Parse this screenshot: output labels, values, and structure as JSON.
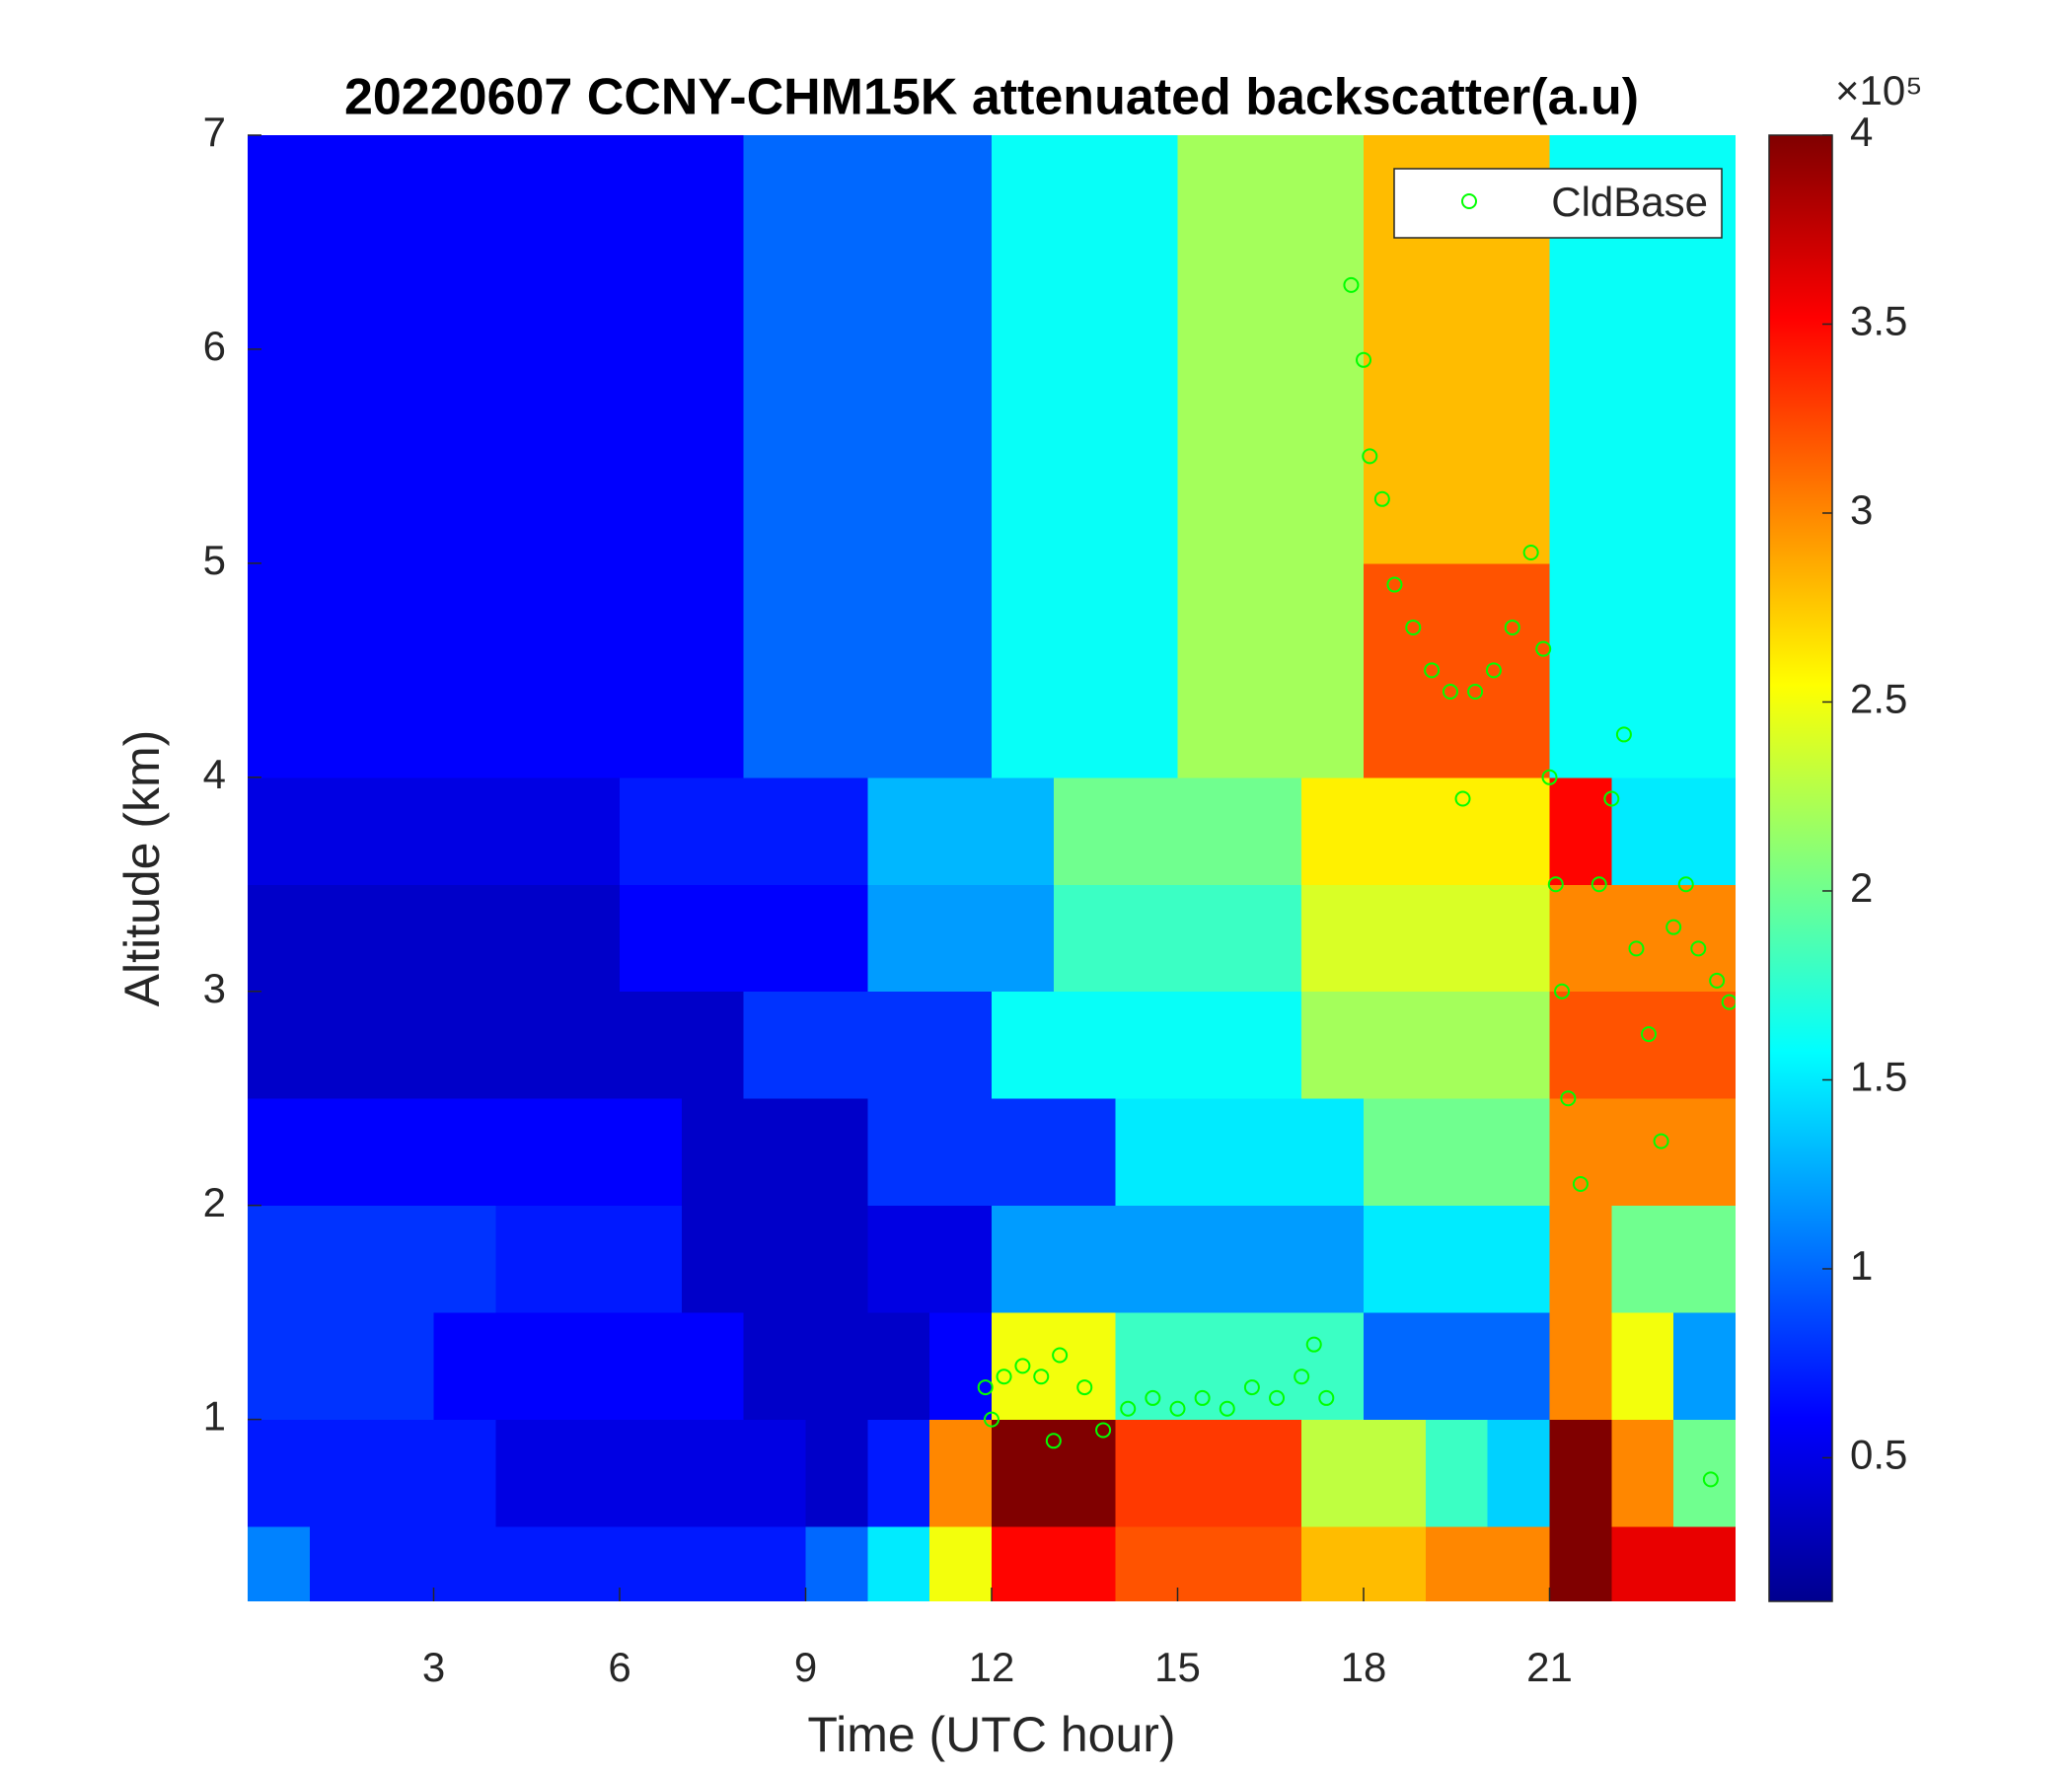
{
  "chart_data": {
    "type": "heatmap",
    "title": "20220607 CCNY-CHM15K attenuated backscatter(a.u)",
    "xlabel": "Time (UTC hour)",
    "ylabel": "Altitude (km)",
    "xlim": [
      0,
      24
    ],
    "xticks": [
      3,
      6,
      9,
      12,
      15,
      18,
      21
    ],
    "ylim": [
      0.15,
      7
    ],
    "yticks": [
      1,
      2,
      3,
      4,
      5,
      6,
      7
    ],
    "colormap": "jet",
    "clim": [
      0.12,
      4
    ],
    "cticks": [
      0.5,
      1,
      1.5,
      2,
      2.5,
      3,
      3.5,
      4
    ],
    "colorbar_scale_label": "×10⁵",
    "xbins": [
      0,
      1,
      2,
      3,
      4,
      5,
      6,
      7,
      8,
      9,
      10,
      11,
      12,
      13,
      14,
      15,
      16,
      17,
      18,
      19,
      20,
      21,
      22,
      23,
      24
    ],
    "ybins": [
      0.15,
      0.5,
      1,
      1.5,
      2,
      2.5,
      3,
      3.5,
      4,
      4.5,
      5,
      5.5,
      6,
      6.5,
      7
    ],
    "z": [
      [
        1.1,
        0.7,
        0.7,
        0.7,
        0.7,
        0.7,
        0.7,
        0.7,
        0.7,
        1.0,
        1.5,
        2.5,
        3.5,
        3.5,
        3.2,
        3.2,
        3.2,
        2.8,
        2.8,
        3.0,
        3.0,
        4,
        3.6,
        3.6
      ],
      [
        0.7,
        0.7,
        0.7,
        0.7,
        0.5,
        0.5,
        0.5,
        0.5,
        0.5,
        0.4,
        0.7,
        3,
        4,
        4,
        3.3,
        3.3,
        3.3,
        2.3,
        2.3,
        1.8,
        1.4,
        4,
        3,
        2
      ],
      [
        0.8,
        0.8,
        0.8,
        0.6,
        0.6,
        0.6,
        0.6,
        0.6,
        0.4,
        0.4,
        0.4,
        0.6,
        2.5,
        2.5,
        1.8,
        1.8,
        1.8,
        1.8,
        1.0,
        1.0,
        1.0,
        3,
        2.5,
        1.2
      ],
      [
        0.8,
        0.8,
        0.8,
        0.8,
        0.7,
        0.7,
        0.7,
        0.4,
        0.4,
        0.4,
        0.5,
        0.5,
        1.2,
        1.2,
        1.2,
        1.2,
        1.2,
        1.2,
        1.5,
        1.5,
        1.5,
        3,
        2,
        2
      ],
      [
        0.6,
        0.6,
        0.6,
        0.6,
        0.6,
        0.6,
        0.6,
        0.4,
        0.4,
        0.4,
        0.8,
        0.8,
        0.8,
        0.8,
        1.5,
        1.5,
        1.5,
        1.5,
        2.0,
        2.0,
        2.0,
        3,
        3,
        3
      ],
      [
        0.4,
        0.4,
        0.4,
        0.4,
        0.4,
        0.4,
        0.4,
        0.4,
        0.8,
        0.8,
        0.8,
        0.8,
        1.6,
        1.6,
        1.6,
        1.6,
        1.6,
        2.2,
        2.2,
        2.2,
        2.2,
        3.2,
        3.2,
        3.2
      ],
      [
        0.4,
        0.4,
        0.4,
        0.4,
        0.4,
        0.4,
        0.6,
        0.6,
        0.6,
        0.6,
        1.2,
        1.2,
        1.2,
        1.8,
        1.8,
        1.8,
        1.8,
        2.4,
        2.4,
        2.4,
        2.4,
        3.0,
        3.0,
        3.0
      ],
      [
        0.5,
        0.5,
        0.5,
        0.5,
        0.5,
        0.5,
        0.7,
        0.7,
        0.7,
        0.7,
        1.3,
        1.3,
        1.3,
        2.0,
        2.0,
        2.0,
        2.0,
        2.6,
        2.6,
        2.6,
        2.6,
        3.5,
        1.5,
        1.5
      ],
      [
        0.6,
        0.6,
        0.6,
        0.6,
        0.6,
        0.6,
        0.6,
        0.6,
        1.0,
        1.0,
        1.0,
        1.0,
        1.6,
        1.6,
        1.6,
        2.2,
        2.2,
        2.2,
        3.2,
        3.2,
        3.2,
        1.6,
        1.6,
        1.6
      ],
      [
        0.6,
        0.6,
        0.6,
        0.6,
        0.6,
        0.6,
        0.6,
        0.6,
        1.0,
        1.0,
        1.0,
        1.0,
        1.6,
        1.6,
        1.6,
        2.2,
        2.2,
        2.2,
        3.2,
        3.2,
        3.2,
        1.6,
        1.6,
        1.6
      ],
      [
        0.6,
        0.6,
        0.6,
        0.6,
        0.6,
        0.6,
        0.6,
        0.6,
        1.0,
        1.0,
        1.0,
        1.0,
        1.6,
        1.6,
        1.6,
        2.2,
        2.2,
        2.2,
        2.8,
        2.8,
        2.8,
        1.6,
        1.6,
        1.6
      ],
      [
        0.6,
        0.6,
        0.6,
        0.6,
        0.6,
        0.6,
        0.6,
        0.6,
        1.0,
        1.0,
        1.0,
        1.0,
        1.6,
        1.6,
        1.6,
        2.2,
        2.2,
        2.2,
        2.8,
        2.8,
        2.8,
        1.6,
        1.6,
        1.6
      ],
      [
        0.6,
        0.6,
        0.6,
        0.6,
        0.6,
        0.6,
        0.6,
        0.6,
        1.0,
        1.0,
        1.0,
        1.0,
        1.6,
        1.6,
        1.6,
        2.2,
        2.2,
        2.2,
        2.8,
        2.8,
        2.8,
        1.6,
        1.6,
        1.6
      ],
      [
        0.6,
        0.6,
        0.6,
        0.6,
        0.6,
        0.6,
        0.6,
        0.6,
        1.0,
        1.0,
        1.0,
        1.0,
        1.6,
        1.6,
        1.6,
        2.2,
        2.2,
        2.2,
        2.8,
        2.8,
        2.8,
        1.6,
        1.6,
        1.6
      ]
    ],
    "legend": "northeast",
    "series": [
      {
        "name": "CldBase",
        "type": "scatter",
        "color": "#00ff00",
        "x": [
          11.9,
          12.2,
          12.5,
          12.8,
          13.1,
          13.5,
          13.8,
          14.2,
          14.6,
          15.0,
          15.4,
          15.8,
          16.2,
          16.6,
          17.0,
          17.4,
          17.8,
          18.0,
          18.1,
          18.3,
          18.5,
          18.8,
          19.1,
          19.4,
          19.6,
          19.8,
          20.1,
          20.4,
          20.7,
          20.9,
          21.0,
          21.1,
          21.2,
          21.3,
          21.5,
          21.8,
          22.0,
          22.2,
          22.4,
          22.6,
          22.8,
          23.0,
          23.2,
          23.4,
          23.7,
          23.9,
          23.6,
          12.0,
          13.0,
          17.2
        ],
        "values": [
          1.15,
          1.2,
          1.25,
          1.2,
          1.3,
          1.15,
          0.95,
          1.05,
          1.1,
          1.05,
          1.1,
          1.05,
          1.15,
          1.1,
          1.2,
          1.1,
          6.3,
          5.95,
          5.5,
          5.3,
          4.9,
          4.7,
          4.5,
          4.4,
          3.9,
          4.4,
          4.5,
          4.7,
          5.05,
          4.6,
          4.0,
          3.5,
          3.0,
          2.5,
          2.1,
          3.5,
          3.9,
          4.2,
          3.2,
          2.8,
          2.3,
          3.3,
          3.5,
          3.2,
          3.05,
          2.95,
          0.72,
          1.0,
          0.9,
          1.35
        ]
      }
    ]
  }
}
